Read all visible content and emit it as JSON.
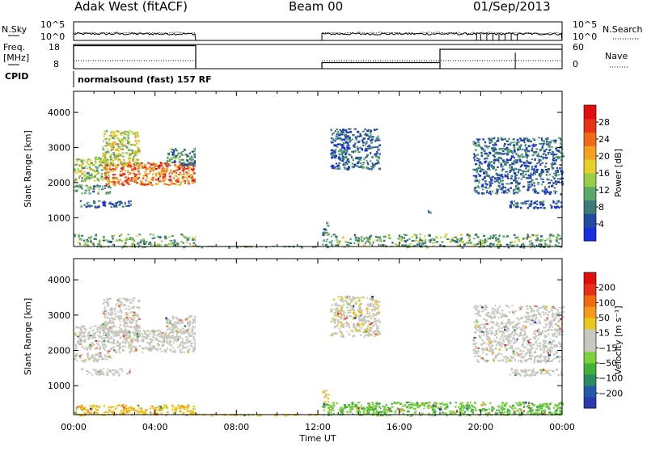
{
  "header": {
    "station": "Adak West (fitACF)",
    "beam": "Beam 00",
    "date": "01/Sep/2013"
  },
  "colors": {
    "frame": "#000000",
    "gap_fill": "#ffffff",
    "grid": "none"
  },
  "chart_data": [
    {
      "id": "noise",
      "type": "line",
      "left_label": "N.Sky",
      "right_label": "N.Search",
      "left_ticks": [
        "10^5",
        "10^0"
      ],
      "right_ticks": [
        "10^5",
        "10^0"
      ],
      "segments": [
        [
          0.0,
          6.0
        ],
        [
          12.2,
          24.0
        ]
      ],
      "level": 0.35,
      "search_dips": [
        [
          19.8,
          20.0
        ],
        [
          20.3,
          20.6
        ],
        [
          20.9,
          21.2
        ],
        [
          21.5,
          21.8
        ]
      ]
    },
    {
      "id": "freq_nave",
      "type": "line",
      "left_label": "Freq.",
      "left_unit": "[MHz]",
      "right_label": "Nave",
      "left_ticks": [
        "18",
        "8"
      ],
      "right_ticks": [
        "60",
        "0"
      ],
      "freq": [
        {
          "x0": 0.0,
          "x1": 6.0,
          "y": 17.5
        },
        {
          "x0": 12.2,
          "x1": 18.0,
          "y": 10.5
        },
        {
          "x0": 18.0,
          "x1": 24.0,
          "y": 16.0
        }
      ],
      "nave": [
        {
          "x0": 0.0,
          "x1": 6.0,
          "y": 20
        },
        {
          "x0": 12.2,
          "x1": 24.0,
          "y": 20
        }
      ],
      "cpid_marks": [
        21.7
      ]
    },
    {
      "id": "cpid",
      "type": "table",
      "label": "CPID",
      "text": "normalsound (fast) 157 RF"
    },
    {
      "id": "power",
      "type": "heatmap",
      "ylabel": "Slant Range [km]",
      "yticks": [
        1000,
        2000,
        3000,
        4000
      ],
      "ylim": [
        180,
        4600
      ],
      "xlim": [
        0,
        24
      ],
      "colorbar_label": "Power [dB]",
      "colorbar_ticks": [
        "4",
        "8",
        "12",
        "16",
        "20",
        "24",
        "28"
      ],
      "colorbar_colors": [
        "#1a2ee0",
        "#244aa0",
        "#3d7a7a",
        "#5aa86a",
        "#9acd45",
        "#e6d12a",
        "#f5a020",
        "#f06a1a",
        "#e8321a",
        "#e01010"
      ],
      "gaps": [
        [
          6.0,
          12.2
        ]
      ],
      "echo_regions": [
        {
          "x0": 0.0,
          "x1": 1.7,
          "r0": 2050,
          "r1": 2750,
          "v": 0.45
        },
        {
          "x0": 0.0,
          "x1": 1.8,
          "r0": 1700,
          "r1": 1950,
          "v": 0.25
        },
        {
          "x0": 0.3,
          "x1": 2.8,
          "r0": 1320,
          "r1": 1500,
          "v": 0.15
        },
        {
          "x0": 1.5,
          "x1": 6.0,
          "r0": 1950,
          "r1": 2600,
          "v": 0.75
        },
        {
          "x0": 1.4,
          "x1": 3.2,
          "r0": 2500,
          "r1": 3500,
          "v": 0.5
        },
        {
          "x0": 4.5,
          "x1": 6.0,
          "r0": 2500,
          "r1": 3000,
          "v": 0.3
        },
        {
          "x0": 12.6,
          "x1": 15.0,
          "r0": 2400,
          "r1": 3550,
          "v": 0.2
        },
        {
          "x0": 17.3,
          "x1": 17.5,
          "r0": 1100,
          "r1": 1300,
          "v": 0.15
        },
        {
          "x0": 19.6,
          "x1": 24.0,
          "r0": 1700,
          "r1": 3300,
          "v": 0.2
        },
        {
          "x0": 21.4,
          "x1": 24.0,
          "r0": 1300,
          "r1": 1500,
          "v": 0.15
        },
        {
          "x0": 12.2,
          "x1": 12.5,
          "r0": 500,
          "r1": 900,
          "v": 0.3
        },
        {
          "x0": 0.0,
          "x1": 24.0,
          "r0": 180,
          "r1": 550,
          "v": 0.35
        }
      ]
    },
    {
      "id": "velocity",
      "type": "heatmap",
      "ylabel": "Slant Range [km]",
      "yticks": [
        1000,
        2000,
        3000,
        4000
      ],
      "ylim": [
        180,
        4600
      ],
      "xlim": [
        0,
        24
      ],
      "xticks": [
        "00:00",
        "04:00",
        "08:00",
        "12:00",
        "16:00",
        "20:00",
        "00:00"
      ],
      "xlabel": "Time UT",
      "colorbar_label": "Velocity [m s⁻¹]",
      "colorbar_ticks": [
        "200",
        "100",
        "50",
        "15",
        "−15",
        "−50",
        "−100",
        "−200"
      ],
      "colorbar_colors": [
        "#2a3ab0",
        "#2458a8",
        "#2a8a60",
        "#44b03c",
        "#7cd23c",
        "#c8c8c0",
        "#c8c8c0",
        "#e8c81c",
        "#f59a1c",
        "#f06a10",
        "#e83018",
        "#e01010"
      ],
      "gaps": [
        [
          6.0,
          12.2
        ]
      ],
      "echo_regions": [
        {
          "x0": 0.0,
          "x1": 1.7,
          "r0": 2050,
          "r1": 2750,
          "v": 0.5
        },
        {
          "x0": 0.0,
          "x1": 1.8,
          "r0": 1700,
          "r1": 1950,
          "v": 0.5
        },
        {
          "x0": 0.3,
          "x1": 2.8,
          "r0": 1320,
          "r1": 1500,
          "v": 0.5
        },
        {
          "x0": 1.5,
          "x1": 6.0,
          "r0": 1950,
          "r1": 2600,
          "v": 0.5
        },
        {
          "x0": 1.4,
          "x1": 3.2,
          "r0": 2500,
          "r1": 3500,
          "v": 0.5
        },
        {
          "x0": 4.5,
          "x1": 6.0,
          "r0": 2500,
          "r1": 3000,
          "v": 0.5
        },
        {
          "x0": 12.6,
          "x1": 15.0,
          "r0": 2400,
          "r1": 3550,
          "v": 0.55
        },
        {
          "x0": 19.6,
          "x1": 24.0,
          "r0": 1700,
          "r1": 3300,
          "v": 0.5
        },
        {
          "x0": 21.4,
          "x1": 24.0,
          "r0": 1300,
          "r1": 1500,
          "v": 0.5
        },
        {
          "x0": 12.2,
          "x1": 12.5,
          "r0": 500,
          "r1": 900,
          "v": 0.6
        },
        {
          "x0": 0.0,
          "x1": 12.0,
          "r0": 180,
          "r1": 480,
          "v": 0.65
        },
        {
          "x0": 12.2,
          "x1": 24.0,
          "r0": 180,
          "r1": 550,
          "v": 0.35
        }
      ]
    }
  ]
}
